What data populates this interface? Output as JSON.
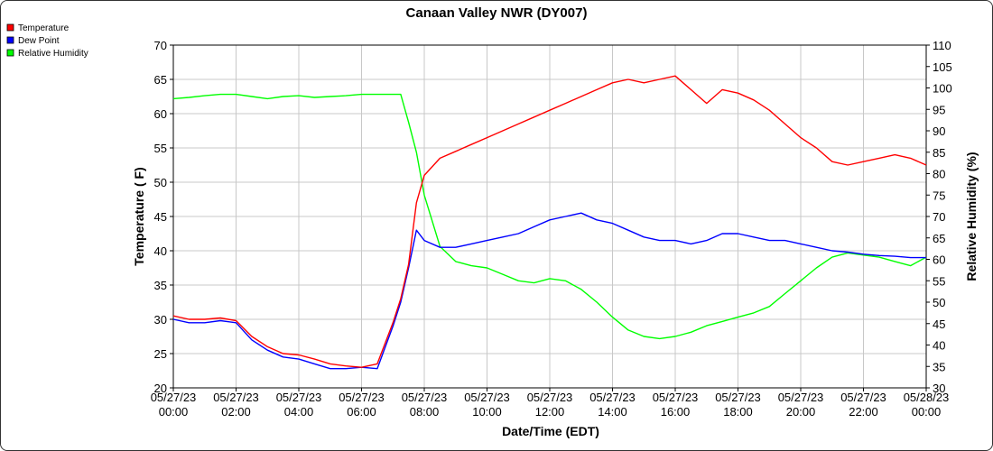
{
  "chart_data": {
    "type": "line",
    "title": "Canaan Valley NWR (DY007)",
    "xlabel": "Date/Time (EDT)",
    "ylabel": "Temperature ( F)",
    "y2label": "Relative Humidity (%)",
    "ylim": [
      20,
      70
    ],
    "y2lim": [
      30,
      110
    ],
    "y_ticks": [
      "20",
      "25",
      "30",
      "35",
      "40",
      "45",
      "50",
      "55",
      "60",
      "65",
      "70"
    ],
    "y2_ticks": [
      "30",
      "35",
      "40",
      "45",
      "50",
      "55",
      "60",
      "65",
      "70",
      "75",
      "80",
      "85",
      "90",
      "95",
      "100",
      "105",
      "110"
    ],
    "x_ticks": [
      {
        "date": "05/27/23",
        "time": "00:00"
      },
      {
        "date": "05/27/23",
        "time": "02:00"
      },
      {
        "date": "05/27/23",
        "time": "04:00"
      },
      {
        "date": "05/27/23",
        "time": "06:00"
      },
      {
        "date": "05/27/23",
        "time": "08:00"
      },
      {
        "date": "05/27/23",
        "time": "10:00"
      },
      {
        "date": "05/27/23",
        "time": "12:00"
      },
      {
        "date": "05/27/23",
        "time": "14:00"
      },
      {
        "date": "05/27/23",
        "time": "16:00"
      },
      {
        "date": "05/27/23",
        "time": "18:00"
      },
      {
        "date": "05/27/23",
        "time": "20:00"
      },
      {
        "date": "05/27/23",
        "time": "22:00"
      },
      {
        "date": "05/28/23",
        "time": "00:00"
      }
    ],
    "grid": true,
    "legend_position": "top-left",
    "x": [
      "00:00",
      "00:30",
      "01:00",
      "01:30",
      "02:00",
      "02:30",
      "03:00",
      "03:30",
      "04:00",
      "04:30",
      "05:00",
      "05:30",
      "06:00",
      "06:30",
      "07:00",
      "07:15",
      "07:30",
      "07:45",
      "08:00",
      "08:30",
      "09:00",
      "09:30",
      "10:00",
      "10:30",
      "11:00",
      "11:30",
      "12:00",
      "12:30",
      "13:00",
      "13:30",
      "14:00",
      "14:30",
      "15:00",
      "15:30",
      "16:00",
      "16:30",
      "17:00",
      "17:30",
      "18:00",
      "18:30",
      "19:00",
      "19:30",
      "20:00",
      "20:30",
      "21:00",
      "21:30",
      "22:00",
      "22:30",
      "23:00",
      "23:30",
      "24:00"
    ],
    "series": [
      {
        "name": "Temperature",
        "color": "#ff0000",
        "axis": "left",
        "values": [
          30.5,
          30.0,
          30.0,
          30.2,
          29.8,
          27.5,
          26.0,
          25.0,
          24.8,
          24.2,
          23.5,
          23.2,
          23.0,
          23.5,
          29.5,
          33.0,
          38.0,
          47.0,
          51.0,
          53.5,
          54.5,
          55.5,
          56.5,
          57.5,
          58.5,
          59.5,
          60.5,
          61.5,
          62.5,
          63.5,
          64.5,
          65.0,
          64.5,
          65.0,
          65.5,
          63.5,
          61.5,
          63.5,
          63.0,
          62.0,
          60.5,
          58.5,
          56.5,
          55.0,
          53.0,
          52.5,
          53.0,
          53.5,
          54.0,
          53.5,
          52.5
        ]
      },
      {
        "name": "Dew Point",
        "color": "#0000ff",
        "axis": "left",
        "values": [
          30.0,
          29.5,
          29.5,
          29.8,
          29.5,
          27.0,
          25.5,
          24.5,
          24.2,
          23.5,
          22.8,
          22.8,
          23.0,
          22.8,
          29.0,
          32.5,
          37.5,
          43.0,
          41.5,
          40.5,
          40.5,
          41.0,
          41.5,
          42.0,
          42.5,
          43.5,
          44.5,
          45.0,
          45.5,
          44.5,
          44.0,
          43.0,
          42.0,
          41.5,
          41.5,
          41.0,
          41.5,
          42.5,
          42.5,
          42.0,
          41.5,
          41.5,
          41.0,
          40.5,
          40.0,
          39.8,
          39.5,
          39.3,
          39.2,
          39.0,
          39.0
        ]
      },
      {
        "name": "Relative Humidity",
        "color": "#00ff00",
        "axis": "right",
        "values": [
          97.5,
          97.8,
          98.2,
          98.5,
          98.5,
          98.0,
          97.5,
          98.0,
          98.2,
          97.8,
          98.0,
          98.2,
          98.5,
          98.5,
          98.5,
          98.5,
          92.0,
          85.0,
          75.0,
          63.0,
          59.5,
          58.5,
          58.0,
          56.5,
          55.0,
          54.5,
          55.5,
          55.0,
          53.0,
          50.0,
          46.5,
          43.5,
          42.0,
          41.5,
          42.0,
          43.0,
          44.5,
          45.5,
          46.5,
          47.5,
          49.0,
          52.0,
          55.0,
          58.0,
          60.5,
          61.5,
          61.0,
          60.5,
          59.5,
          58.5,
          60.5
        ]
      }
    ]
  }
}
